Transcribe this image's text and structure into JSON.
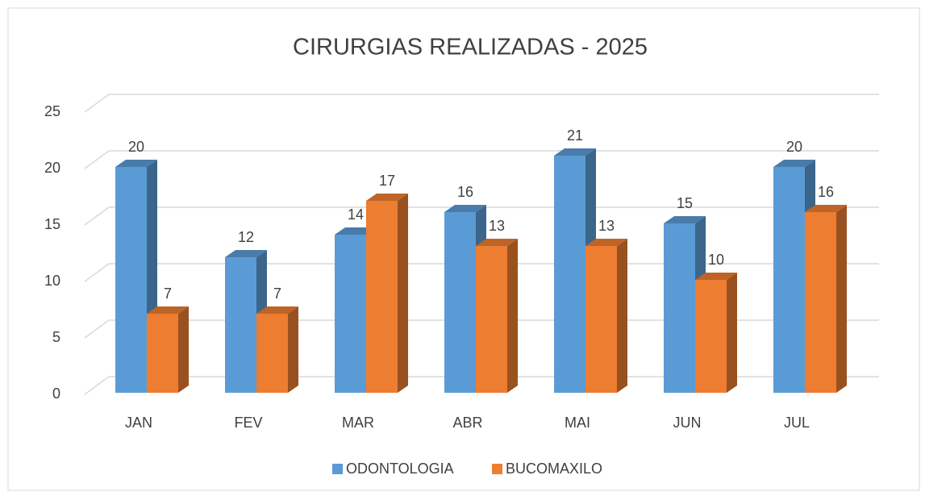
{
  "chart_data": {
    "type": "bar3d",
    "title": "CIRURGIAS REALIZADAS - 2025",
    "categories": [
      "JAN",
      "FEV",
      "MAR",
      "ABR",
      "MAI",
      "JUN",
      "JUL"
    ],
    "series": [
      {
        "name": "ODONTOLOGIA",
        "color": "#5b9bd5",
        "values": [
          20,
          12,
          14,
          16,
          21,
          15,
          20
        ]
      },
      {
        "name": "BUCOMAXILO",
        "color": "#ed7d31",
        "values": [
          7,
          7,
          17,
          13,
          13,
          10,
          16
        ]
      }
    ],
    "ylim": [
      0,
      25
    ],
    "yticks": [
      0,
      5,
      10,
      15,
      20,
      25
    ],
    "grid": true,
    "legend": "bottom"
  }
}
